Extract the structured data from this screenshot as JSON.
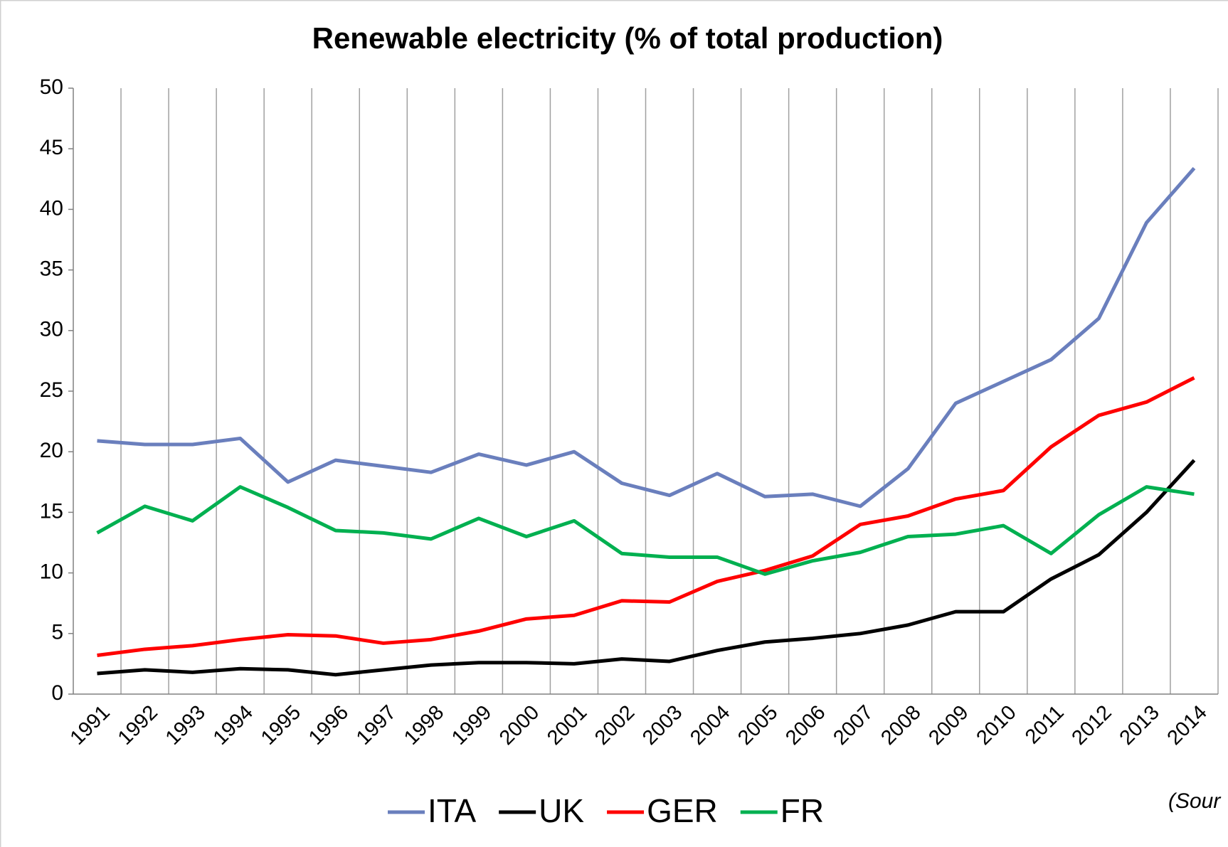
{
  "chart_data": {
    "type": "line",
    "title": "Renewable electricity (% of total production)",
    "categories": [
      "1991",
      "1992",
      "1993",
      "1994",
      "1995",
      "1996",
      "1997",
      "1998",
      "1999",
      "2000",
      "2001",
      "2002",
      "2003",
      "2004",
      "2005",
      "2006",
      "2007",
      "2008",
      "2009",
      "2010",
      "2011",
      "2012",
      "2013",
      "2014"
    ],
    "series": [
      {
        "name": "ITA",
        "color": "#6a7fbd",
        "values": [
          20.9,
          20.6,
          20.6,
          21.1,
          17.5,
          19.3,
          18.8,
          18.3,
          19.8,
          18.9,
          20.0,
          17.4,
          16.4,
          18.2,
          16.3,
          16.5,
          15.5,
          18.6,
          24.0,
          25.8,
          27.6,
          31.0,
          38.9,
          43.4
        ]
      },
      {
        "name": "UK",
        "color": "#000000",
        "values": [
          1.7,
          2.0,
          1.8,
          2.1,
          2.0,
          1.6,
          2.0,
          2.4,
          2.6,
          2.6,
          2.5,
          2.9,
          2.7,
          3.6,
          4.3,
          4.6,
          5.0,
          5.7,
          6.8,
          6.8,
          9.5,
          11.5,
          15.0,
          19.3
        ]
      },
      {
        "name": "GER",
        "color": "#ff0000",
        "values": [
          3.2,
          3.7,
          4.0,
          4.5,
          4.9,
          4.8,
          4.2,
          4.5,
          5.2,
          6.2,
          6.5,
          7.7,
          7.6,
          9.3,
          10.2,
          11.4,
          14.0,
          14.7,
          16.1,
          16.8,
          20.4,
          23.0,
          24.1,
          26.1
        ]
      },
      {
        "name": "FR",
        "color": "#00b050",
        "values": [
          13.3,
          15.5,
          14.3,
          17.1,
          15.4,
          13.5,
          13.3,
          12.8,
          14.5,
          13.0,
          14.3,
          11.6,
          11.3,
          11.3,
          9.9,
          11.0,
          11.7,
          13.0,
          13.2,
          13.9,
          11.6,
          14.8,
          17.1,
          16.5
        ]
      }
    ],
    "ylim": [
      0,
      50
    ],
    "yticks": [
      0,
      5,
      10,
      15,
      20,
      25,
      30,
      35,
      40,
      45,
      50
    ],
    "legend": "bottom",
    "annotation": "(Sour"
  }
}
